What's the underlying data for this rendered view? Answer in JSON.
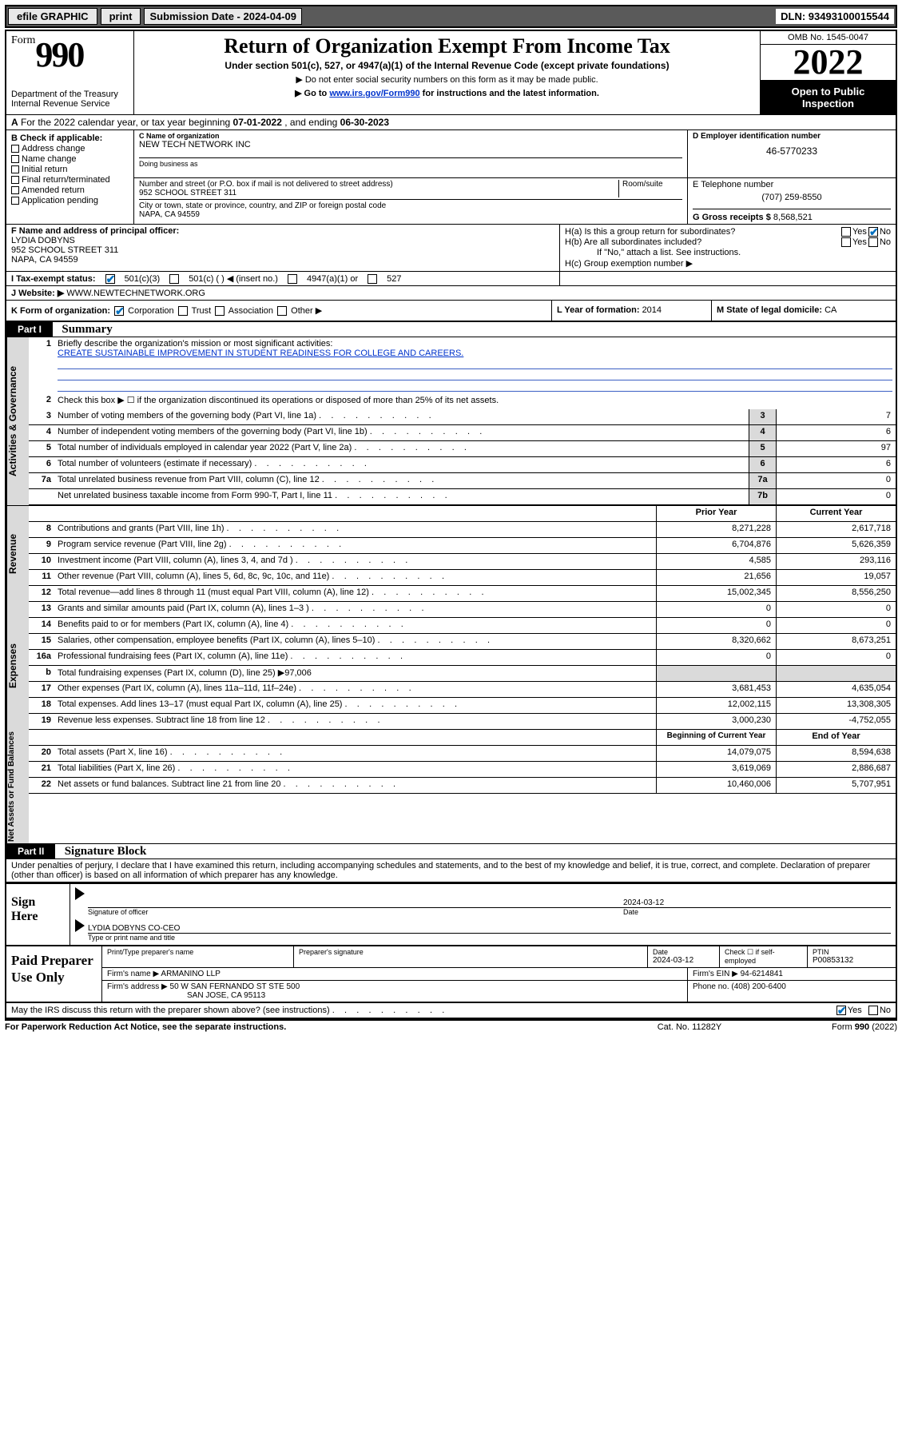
{
  "topbar": {
    "efile": "efile GRAPHIC",
    "print": "print",
    "submission": "Submission Date - 2024-04-09",
    "dln": "DLN: 93493100015544"
  },
  "header": {
    "form_word": "Form",
    "form_num": "990",
    "dept": "Department of the Treasury",
    "irs": "Internal Revenue Service",
    "title": "Return of Organization Exempt From Income Tax",
    "sub1": "Under section 501(c), 527, or 4947(a)(1) of the Internal Revenue Code (except private foundations)",
    "sub2": "Do not enter social security numbers on this form as it may be made public.",
    "sub3_pre": "Go to ",
    "sub3_link": "www.irs.gov/Form990",
    "sub3_post": " for instructions and the latest information.",
    "omb": "OMB No. 1545-0047",
    "year": "2022",
    "open1": "Open to Public",
    "open2": "Inspection"
  },
  "rowA": {
    "label_a": "A",
    "text": "For the 2022 calendar year, or tax year beginning ",
    "begin": "07-01-2022",
    "mid": " , and ending ",
    "end": "06-30-2023"
  },
  "colB": {
    "label": "B Check if applicable:",
    "items": [
      "Address change",
      "Name change",
      "Initial return",
      "Final return/terminated",
      "Amended return",
      "Application pending"
    ]
  },
  "colC": {
    "name_lbl": "C Name of organization",
    "name_val": "NEW TECH NETWORK INC",
    "dba_lbl": "Doing business as",
    "addr_lbl": "Number and street (or P.O. box if mail is not delivered to street address)",
    "room_lbl": "Room/suite",
    "addr_val": "952 SCHOOL STREET 311",
    "city_lbl": "City or town, state or province, country, and ZIP or foreign postal code",
    "city_val": "NAPA, CA  94559"
  },
  "colD": {
    "lbl": "D Employer identification number",
    "val": "46-5770233"
  },
  "colE": {
    "lbl": "E Telephone number",
    "val": "(707) 259-8550"
  },
  "colG": {
    "lbl": "G Gross receipts $",
    "val": "8,568,521"
  },
  "colF": {
    "lbl": "F Name and address of principal officer:",
    "name": "LYDIA DOBYNS",
    "addr1": "952 SCHOOL STREET 311",
    "addr2": "NAPA, CA  94559"
  },
  "colH": {
    "ha": "H(a)  Is this a group return for subordinates?",
    "hb": "H(b)  Are all subordinates included?",
    "hb_note": "If \"No,\" attach a list. See instructions.",
    "hc": "H(c)  Group exemption number ▶",
    "yes": "Yes",
    "no": "No"
  },
  "rowI": {
    "lbl": "I     Tax-exempt status:",
    "opt1": "501(c)(3)",
    "opt2": "501(c) (  ) ◀ (insert no.)",
    "opt3": "4947(a)(1) or",
    "opt4": "527"
  },
  "rowJ": {
    "lbl": "J    Website: ▶",
    "val": "WWW.NEWTECHNETWORK.ORG"
  },
  "rowK": {
    "lbl": "K Form of organization:",
    "opts": [
      "Corporation",
      "Trust",
      "Association",
      "Other ▶"
    ]
  },
  "rowL": {
    "lbl": "L Year of formation: ",
    "val": "2014"
  },
  "rowM": {
    "lbl": "M State of legal domicile: ",
    "val": "CA"
  },
  "part1": {
    "hdr": "Part I",
    "title": "Summary"
  },
  "summary": {
    "l1_lbl": "Briefly describe the organization's mission or most significant activities:",
    "l1_val": "CREATE SUSTAINABLE IMPROVEMENT IN STUDENT READINESS FOR COLLEGE AND CAREERS.",
    "l2": "Check this box ▶ ☐  if the organization discontinued its operations or disposed of more than 25% of its net assets.",
    "lines_gov": [
      {
        "n": "3",
        "t": "Number of voting members of the governing body (Part VI, line 1a)",
        "b": "3",
        "v": "7"
      },
      {
        "n": "4",
        "t": "Number of independent voting members of the governing body (Part VI, line 1b)",
        "b": "4",
        "v": "6"
      },
      {
        "n": "5",
        "t": "Total number of individuals employed in calendar year 2022 (Part V, line 2a)",
        "b": "5",
        "v": "97"
      },
      {
        "n": "6",
        "t": "Total number of volunteers (estimate if necessary)",
        "b": "6",
        "v": "6"
      },
      {
        "n": "7a",
        "t": "Total unrelated business revenue from Part VIII, column (C), line 12",
        "b": "7a",
        "v": "0"
      },
      {
        "n": "",
        "t": "Net unrelated business taxable income from Form 990-T, Part I, line 11",
        "b": "7b",
        "v": "0"
      }
    ],
    "prior_hdr": "Prior Year",
    "curr_hdr": "Current Year",
    "lines_rev": [
      {
        "n": "8",
        "t": "Contributions and grants (Part VIII, line 1h)",
        "p": "8,271,228",
        "c": "2,617,718"
      },
      {
        "n": "9",
        "t": "Program service revenue (Part VIII, line 2g)",
        "p": "6,704,876",
        "c": "5,626,359"
      },
      {
        "n": "10",
        "t": "Investment income (Part VIII, column (A), lines 3, 4, and 7d )",
        "p": "4,585",
        "c": "293,116"
      },
      {
        "n": "11",
        "t": "Other revenue (Part VIII, column (A), lines 5, 6d, 8c, 9c, 10c, and 11e)",
        "p": "21,656",
        "c": "19,057"
      },
      {
        "n": "12",
        "t": "Total revenue—add lines 8 through 11 (must equal Part VIII, column (A), line 12)",
        "p": "15,002,345",
        "c": "8,556,250"
      }
    ],
    "lines_exp": [
      {
        "n": "13",
        "t": "Grants and similar amounts paid (Part IX, column (A), lines 1–3 )",
        "p": "0",
        "c": "0"
      },
      {
        "n": "14",
        "t": "Benefits paid to or for members (Part IX, column (A), line 4)",
        "p": "0",
        "c": "0"
      },
      {
        "n": "15",
        "t": "Salaries, other compensation, employee benefits (Part IX, column (A), lines 5–10)",
        "p": "8,320,662",
        "c": "8,673,251"
      },
      {
        "n": "16a",
        "t": "Professional fundraising fees (Part IX, column (A), line 11e)",
        "p": "0",
        "c": "0"
      }
    ],
    "l16b_pre": "Total fundraising expenses (Part IX, column (D), line 25) ▶",
    "l16b_val": "97,006",
    "lines_exp2": [
      {
        "n": "17",
        "t": "Other expenses (Part IX, column (A), lines 11a–11d, 11f–24e)",
        "p": "3,681,453",
        "c": "4,635,054"
      },
      {
        "n": "18",
        "t": "Total expenses. Add lines 13–17 (must equal Part IX, column (A), line 25)",
        "p": "12,002,115",
        "c": "13,308,305"
      },
      {
        "n": "19",
        "t": "Revenue less expenses. Subtract line 18 from line 12",
        "p": "3,000,230",
        "c": "-4,752,055"
      }
    ],
    "begin_hdr": "Beginning of Current Year",
    "end_hdr": "End of Year",
    "lines_net": [
      {
        "n": "20",
        "t": "Total assets (Part X, line 16)",
        "p": "14,079,075",
        "c": "8,594,638"
      },
      {
        "n": "21",
        "t": "Total liabilities (Part X, line 26)",
        "p": "3,619,069",
        "c": "2,886,687"
      },
      {
        "n": "22",
        "t": "Net assets or fund balances. Subtract line 21 from line 20",
        "p": "10,460,006",
        "c": "5,707,951"
      }
    ]
  },
  "vtabs": {
    "gov": "Activities & Governance",
    "rev": "Revenue",
    "exp": "Expenses",
    "net": "Net Assets or Fund Balances"
  },
  "part2": {
    "hdr": "Part II",
    "title": "Signature Block"
  },
  "penalties": "Under penalties of perjury, I declare that I have examined this return, including accompanying schedules and statements, and to the best of my knowledge and belief, it is true, correct, and complete. Declaration of preparer (other than officer) is based on all information of which preparer has any knowledge.",
  "sign": {
    "here": "Sign Here",
    "sig_lbl": "Signature of officer",
    "date_lbl": "Date",
    "date_val": "2024-03-12",
    "name_val": "LYDIA DOBYNS  CO-CEO",
    "name_lbl": "Type or print name and title"
  },
  "prep": {
    "title": "Paid Preparer Use Only",
    "h_name": "Print/Type preparer's name",
    "h_sig": "Preparer's signature",
    "h_date": "Date",
    "date_val": "2024-03-12",
    "h_check": "Check ☐ if self-employed",
    "h_ptin": "PTIN",
    "ptin_val": "P00853132",
    "firm_name_lbl": "Firm's name      ▶",
    "firm_name": "ARMANINO LLP",
    "firm_ein_lbl": "Firm's EIN ▶",
    "firm_ein": "94-6214841",
    "firm_addr_lbl": "Firm's address ▶",
    "firm_addr1": "50 W SAN FERNANDO ST STE 500",
    "firm_addr2": "SAN JOSE, CA  95113",
    "phone_lbl": "Phone no.",
    "phone_val": "(408) 200-6400"
  },
  "discuss": {
    "text": "May the IRS discuss this return with the preparer shown above? (see instructions)",
    "yes": "Yes",
    "no": "No"
  },
  "footer": {
    "left": "For Paperwork Reduction Act Notice, see the separate instructions.",
    "mid": "Cat. No. 11282Y",
    "right_pre": "Form ",
    "right_b": "990",
    "right_post": " (2022)"
  }
}
